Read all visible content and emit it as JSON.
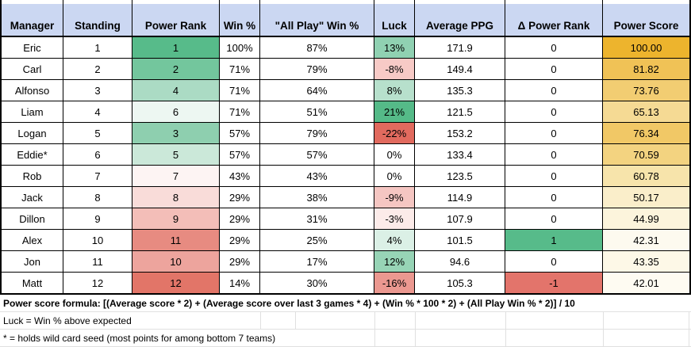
{
  "theme": {
    "header_bg": "#cbd7f2",
    "max_green": "#57bb8a",
    "max_red": "#e2695e",
    "max_gold": "#edb42d"
  },
  "columns": [
    {
      "key": "manager",
      "label": "Manager"
    },
    {
      "key": "standing",
      "label": "Standing"
    },
    {
      "key": "power_rank",
      "label": "Power Rank"
    },
    {
      "key": "win_pct",
      "label": "Win %"
    },
    {
      "key": "all_play",
      "label": "\"All Play\" Win %"
    },
    {
      "key": "luck",
      "label": "Luck"
    },
    {
      "key": "avg_ppg",
      "label": "Average PPG"
    },
    {
      "key": "delta_pr",
      "label": "Δ Power Rank"
    },
    {
      "key": "power_score",
      "label": "Power Score"
    }
  ],
  "rows": [
    {
      "manager": "Eric",
      "standing": "1",
      "power_rank": "1",
      "power_rank_bg": "#57bb8a",
      "win_pct": "100%",
      "all_play": "87%",
      "luck": "13%",
      "luck_bg": "#90d1b2",
      "avg_ppg": "171.9",
      "delta_pr": "0",
      "delta_pr_bg": "#ffffff",
      "power_score": "100.00",
      "power_score_bg": "#edb42d"
    },
    {
      "manager": "Carl",
      "standing": "2",
      "power_rank": "2",
      "power_rank_bg": "#73c69d",
      "win_pct": "71%",
      "all_play": "79%",
      "luck": "-8%",
      "luck_bg": "#f7cac6",
      "avg_ppg": "149.4",
      "delta_pr": "0",
      "delta_pr_bg": "#ffffff",
      "power_score": "81.82",
      "power_score_bg": "#f0c256"
    },
    {
      "manager": "Alfonso",
      "standing": "3",
      "power_rank": "4",
      "power_rank_bg": "#abdbc4",
      "win_pct": "71%",
      "all_play": "64%",
      "luck": "8%",
      "luck_bg": "#b7e0cc",
      "avg_ppg": "135.3",
      "delta_pr": "0",
      "delta_pr_bg": "#ffffff",
      "power_score": "73.76",
      "power_score_bg": "#f2cd72"
    },
    {
      "manager": "Liam",
      "standing": "4",
      "power_rank": "6",
      "power_rank_bg": "#edf7f2",
      "win_pct": "71%",
      "all_play": "51%",
      "luck": "21%",
      "luck_bg": "#55ba88",
      "avg_ppg": "121.5",
      "delta_pr": "0",
      "delta_pr_bg": "#ffffff",
      "power_score": "65.13",
      "power_score_bg": "#f5da94"
    },
    {
      "manager": "Logan",
      "standing": "5",
      "power_rank": "3",
      "power_rank_bg": "#8ecfaf",
      "win_pct": "57%",
      "all_play": "79%",
      "luck": "-22%",
      "luck_bg": "#e16a5e",
      "avg_ppg": "153.2",
      "delta_pr": "0",
      "delta_pr_bg": "#ffffff",
      "power_score": "76.34",
      "power_score_bg": "#f1c866"
    },
    {
      "manager": "Eddie*",
      "standing": "6",
      "power_rank": "5",
      "power_rank_bg": "#cbe8d9",
      "win_pct": "57%",
      "all_play": "57%",
      "luck": "0%",
      "luck_bg": "#ffffff",
      "avg_ppg": "133.4",
      "delta_pr": "0",
      "delta_pr_bg": "#ffffff",
      "power_score": "70.59",
      "power_score_bg": "#f3d380"
    },
    {
      "manager": "Rob",
      "standing": "7",
      "power_rank": "7",
      "power_rank_bg": "#fdf4f3",
      "win_pct": "43%",
      "all_play": "43%",
      "luck": "0%",
      "luck_bg": "#ffffff",
      "avg_ppg": "123.5",
      "delta_pr": "0",
      "delta_pr_bg": "#ffffff",
      "power_score": "60.78",
      "power_score_bg": "#f7e4ab"
    },
    {
      "manager": "Jack",
      "standing": "8",
      "power_rank": "8",
      "power_rank_bg": "#f9dcd9",
      "win_pct": "29%",
      "all_play": "38%",
      "luck": "-9%",
      "luck_bg": "#f5c6c2",
      "avg_ppg": "114.9",
      "delta_pr": "0",
      "delta_pr_bg": "#ffffff",
      "power_score": "50.17",
      "power_score_bg": "#faeeca"
    },
    {
      "manager": "Dillon",
      "standing": "9",
      "power_rank": "9",
      "power_rank_bg": "#f3beb8",
      "win_pct": "29%",
      "all_play": "31%",
      "luck": "-3%",
      "luck_bg": "#fcebe9",
      "avg_ppg": "107.9",
      "delta_pr": "0",
      "delta_pr_bg": "#ffffff",
      "power_score": "44.99",
      "power_score_bg": "#fcf4dc"
    },
    {
      "manager": "Alex",
      "standing": "10",
      "power_rank": "11",
      "power_rank_bg": "#e78b81",
      "win_pct": "29%",
      "all_play": "25%",
      "luck": "4%",
      "luck_bg": "#dbf0e6",
      "avg_ppg": "101.5",
      "delta_pr": "1",
      "delta_pr_bg": "#57bb8a",
      "power_score": "42.31",
      "power_score_bg": "#fdfaef"
    },
    {
      "manager": "Jon",
      "standing": "11",
      "power_rank": "10",
      "power_rank_bg": "#eda49d",
      "win_pct": "29%",
      "all_play": "17%",
      "luck": "12%",
      "luck_bg": "#97d4b6",
      "avg_ppg": "94.6",
      "delta_pr": "0",
      "delta_pr_bg": "#ffffff",
      "power_score": "43.35",
      "power_score_bg": "#fdf8e7"
    },
    {
      "manager": "Matt",
      "standing": "12",
      "power_rank": "12",
      "power_rank_bg": "#e27568",
      "win_pct": "14%",
      "all_play": "30%",
      "luck": "-16%",
      "luck_bg": "#eb9890",
      "avg_ppg": "105.3",
      "delta_pr": "-1",
      "delta_pr_bg": "#e3746b",
      "power_score": "42.01",
      "power_score_bg": "#fefbf2"
    }
  ],
  "footer": {
    "formula": "Power score formula: [(Average score * 2) + (Average score over last 3 games * 4) + (Win % * 100 * 2) + (All Play Win % * 2)] / 10",
    "luck_note": "Luck = Win % above expected",
    "wildcard_note": "* = holds wild card seed (most points for among bottom 7 teams)"
  }
}
